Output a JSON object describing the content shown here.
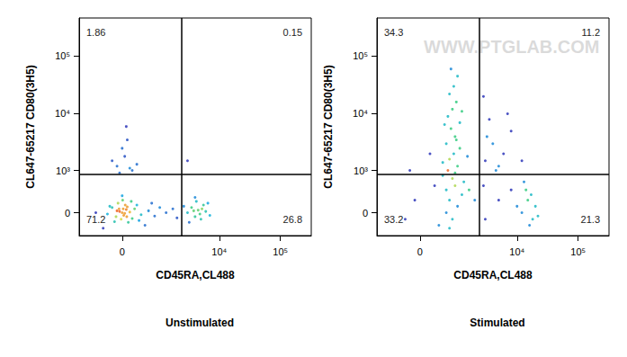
{
  "chart_data": [
    {
      "type": "scatter",
      "title": "Unstimulated",
      "x_label": "CD45RA,CL488",
      "y_label": "CL647-65217 CD80(3H5)",
      "xlim": [
        -1250,
        320000
      ],
      "ylim": [
        -400,
        460000
      ],
      "xticks": [
        {
          "value": 0,
          "label": "0"
        },
        {
          "value": 10000,
          "label": "10⁴"
        },
        {
          "value": 100000,
          "label": "10⁵"
        }
      ],
      "yticks": [
        {
          "value": 0,
          "label": "0"
        },
        {
          "value": 1000,
          "label": "10³"
        },
        {
          "value": 10000,
          "label": "10⁴"
        },
        {
          "value": 100000,
          "label": "10⁵"
        }
      ],
      "gates": {
        "x": 2400,
        "y": 860
      },
      "quadrant_percents": {
        "upper_left": 1.86,
        "upper_right": 0.15,
        "lower_left": 71.2,
        "lower_right": 26.8
      },
      "points": [
        [
          -50,
          20
        ],
        [
          0,
          0
        ],
        [
          30,
          -40
        ],
        [
          80,
          50
        ],
        [
          -120,
          -60
        ],
        [
          150,
          10
        ],
        [
          -200,
          80
        ],
        [
          200,
          -90
        ],
        [
          60,
          120
        ],
        [
          -80,
          150
        ],
        [
          120,
          -150
        ],
        [
          250,
          60
        ],
        [
          -300,
          -20
        ],
        [
          300,
          120
        ],
        [
          10,
          200
        ],
        [
          -150,
          -140
        ],
        [
          400,
          -30
        ],
        [
          -20,
          -100
        ],
        [
          100,
          90
        ],
        [
          50,
          -10
        ],
        [
          -60,
          60
        ],
        [
          180,
          180
        ],
        [
          -250,
          100
        ],
        [
          350,
          -120
        ],
        [
          0,
          280
        ],
        [
          90,
          -60
        ],
        [
          -100,
          30
        ],
        [
          20,
          60
        ],
        [
          600,
          30
        ],
        [
          800,
          -50
        ],
        [
          1000,
          80
        ],
        [
          1300,
          0
        ],
        [
          1700,
          60
        ],
        [
          2000,
          -80
        ],
        [
          3000,
          0
        ],
        [
          3500,
          80
        ],
        [
          4000,
          -60
        ],
        [
          4500,
          40
        ],
        [
          5000,
          -100
        ],
        [
          5500,
          120
        ],
        [
          6000,
          20
        ],
        [
          3200,
          -150
        ],
        [
          4200,
          180
        ],
        [
          7000,
          -40
        ],
        [
          3800,
          30
        ],
        [
          4800,
          -20
        ],
        [
          2600,
          100
        ],
        [
          6500,
          150
        ],
        [
          5200,
          60
        ],
        [
          4000,
          250
        ],
        [
          -100,
          1200
        ],
        [
          50,
          1800
        ],
        [
          150,
          1100
        ],
        [
          0,
          2500
        ],
        [
          -200,
          1500
        ],
        [
          100,
          3500
        ],
        [
          300,
          1300
        ],
        [
          -50,
          900
        ],
        [
          80,
          6000
        ],
        [
          200,
          1000
        ],
        [
          3000,
          1500
        ],
        [
          -400,
          -250
        ],
        [
          500,
          -200
        ],
        [
          -600,
          0
        ],
        [
          700,
          150
        ]
      ]
    },
    {
      "type": "scatter",
      "title": "Stimulated",
      "watermark": "WWW.PTGLAB.COM",
      "x_label": "CD45RA,CL488",
      "y_label": "CL647-65217 CD80(3H5)",
      "xlim": [
        -1250,
        320000
      ],
      "ylim": [
        -400,
        460000
      ],
      "xticks": [
        {
          "value": 0,
          "label": "0"
        },
        {
          "value": 10000,
          "label": "10⁴"
        },
        {
          "value": 100000,
          "label": "10⁵"
        }
      ],
      "yticks": [
        {
          "value": 0,
          "label": "0"
        },
        {
          "value": 1000,
          "label": "10³"
        },
        {
          "value": 10000,
          "label": "10⁴"
        },
        {
          "value": 100000,
          "label": "10⁵"
        }
      ],
      "gates": {
        "x": 2400,
        "y": 860
      },
      "quadrant_percents": {
        "upper_left": 34.3,
        "upper_right": 11.2,
        "lower_left": 33.2,
        "lower_right": 21.3
      },
      "points": [
        [
          600,
          0
        ],
        [
          700,
          200
        ],
        [
          800,
          -100
        ],
        [
          900,
          500
        ],
        [
          500,
          800
        ],
        [
          1000,
          1200
        ],
        [
          700,
          1600
        ],
        [
          850,
          2000
        ],
        [
          600,
          3000
        ],
        [
          900,
          4000
        ],
        [
          750,
          5500
        ],
        [
          1100,
          7000
        ],
        [
          650,
          9000
        ],
        [
          800,
          12000
        ],
        [
          950,
          16000
        ],
        [
          700,
          22000
        ],
        [
          850,
          30000
        ],
        [
          1000,
          45000
        ],
        [
          750,
          60000
        ],
        [
          600,
          400
        ],
        [
          1200,
          300
        ],
        [
          400,
          -200
        ],
        [
          900,
          900
        ],
        [
          1100,
          2500
        ],
        [
          500,
          1400
        ],
        [
          1300,
          600
        ],
        [
          700,
          -250
        ],
        [
          1000,
          100
        ],
        [
          800,
          700
        ],
        [
          650,
          1000
        ],
        [
          950,
          3500
        ],
        [
          550,
          6500
        ],
        [
          1200,
          11000
        ],
        [
          300,
          500
        ],
        [
          200,
          2000
        ],
        [
          -200,
          1000
        ],
        [
          -100,
          200
        ],
        [
          1500,
          1800
        ],
        [
          1600,
          400
        ],
        [
          3000,
          1500
        ],
        [
          4000,
          3000
        ],
        [
          5000,
          1200
        ],
        [
          3500,
          8000
        ],
        [
          6000,
          2000
        ],
        [
          8000,
          5000
        ],
        [
          2800,
          20000
        ],
        [
          4500,
          1000
        ],
        [
          12000,
          1500
        ],
        [
          3200,
          4000
        ],
        [
          7000,
          10000
        ],
        [
          12000,
          0
        ],
        [
          15000,
          200
        ],
        [
          18000,
          -100
        ],
        [
          14000,
          400
        ],
        [
          20000,
          100
        ],
        [
          16000,
          -200
        ],
        [
          13000,
          600
        ],
        [
          17000,
          300
        ],
        [
          10000,
          100
        ],
        [
          22000,
          -50
        ],
        [
          5000,
          200
        ],
        [
          3000,
          -100
        ],
        [
          8000,
          400
        ],
        [
          2800,
          500
        ],
        [
          2000,
          200
        ],
        [
          -300,
          -100
        ]
      ]
    }
  ]
}
